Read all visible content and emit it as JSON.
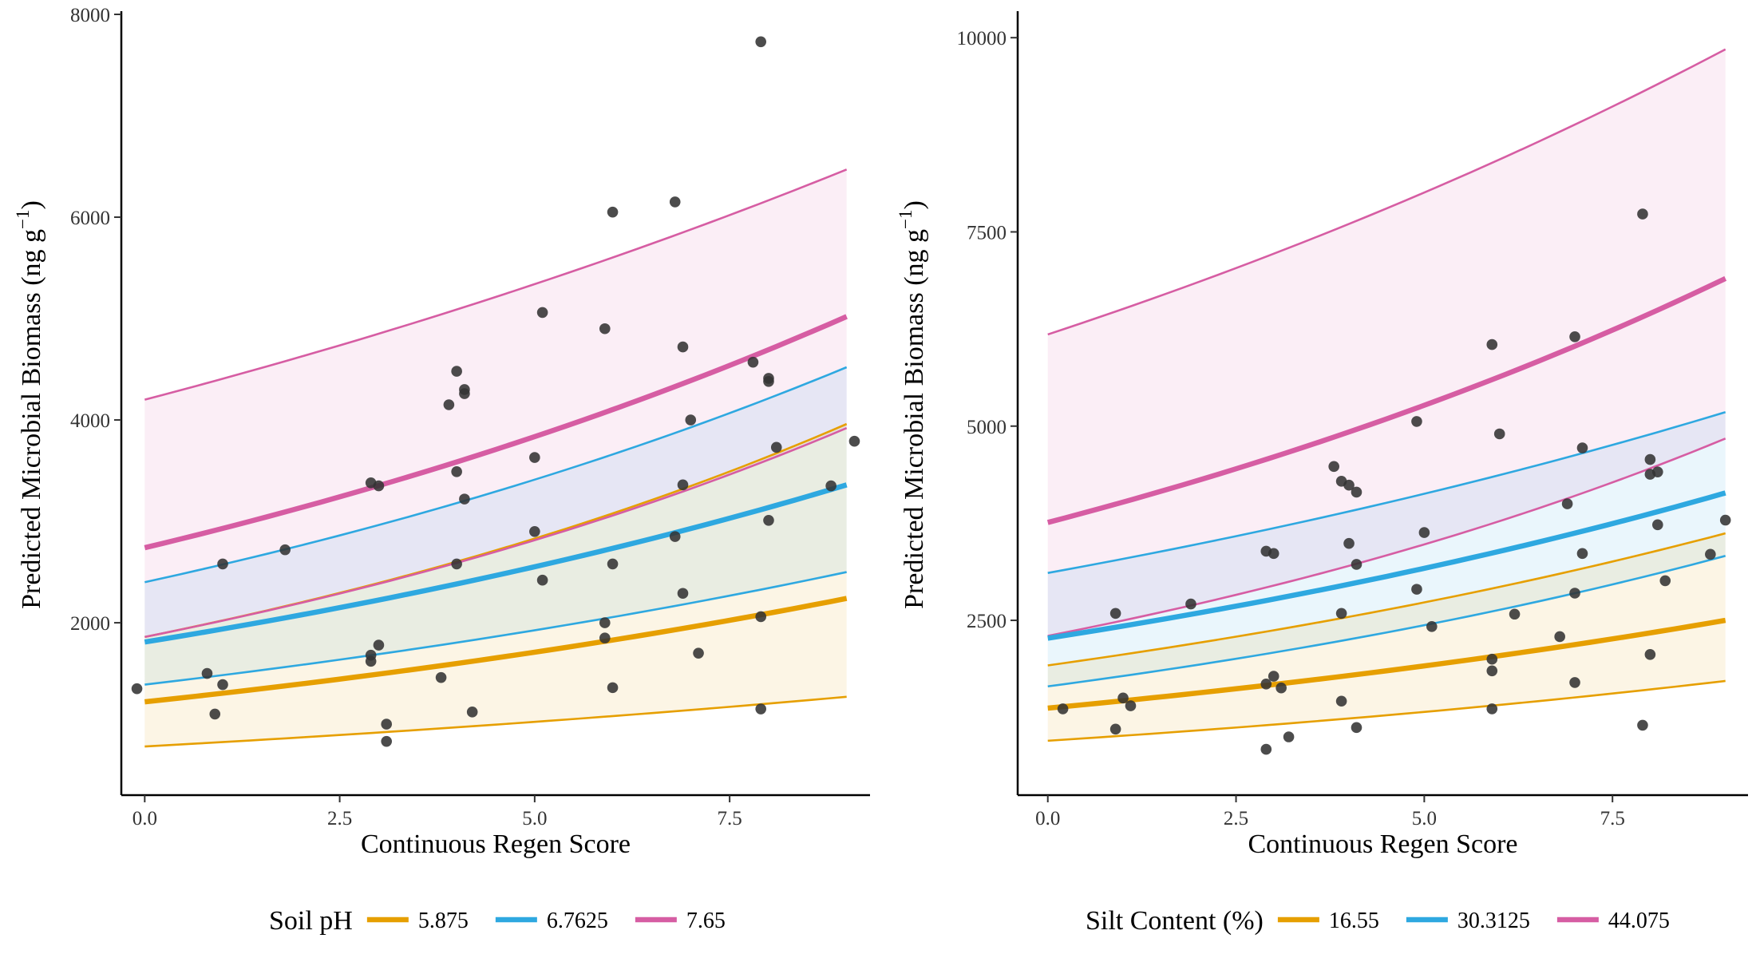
{
  "chart_data": [
    {
      "type": "line",
      "xlabel": "Continuous Regen Score",
      "ylabel_main": "Predicted Microbial Biomass (ng g",
      "ylabel_sup": "−1",
      "ylabel_close": ")",
      "xlim": [
        -0.3,
        9.3
      ],
      "ylim": [
        300,
        8000
      ],
      "xticks": [
        0.0,
        2.5,
        5.0,
        7.5
      ],
      "xtick_labels": [
        "0.0",
        "2.5",
        "5.0",
        "7.5"
      ],
      "yticks": [
        2000,
        4000,
        6000,
        8000
      ],
      "ytick_labels": [
        "2000",
        "4000",
        "6000",
        "8000"
      ],
      "grid": false,
      "legend_position": "bottom",
      "legend_title": "Soil pH",
      "series": [
        {
          "name": "5.875",
          "color": "#E69F00",
          "x": [
            0,
            9
          ],
          "fit": [
            1220,
            2240
          ],
          "lower": [
            780,
            1270
          ],
          "upper": [
            1860,
            3960
          ]
        },
        {
          "name": "6.7625",
          "color": "#2EA8E0",
          "x": [
            0,
            9
          ],
          "fit": [
            1810,
            3360
          ],
          "lower": [
            1390,
            2500
          ],
          "upper": [
            2400,
            4520
          ]
        },
        {
          "name": "7.65",
          "color": "#D65DA3",
          "x": [
            0,
            9
          ],
          "fit": [
            2740,
            5020
          ],
          "lower": [
            1860,
            3920
          ],
          "upper": [
            4200,
            6470
          ]
        }
      ],
      "points": [
        [
          -0.1,
          1350
        ],
        [
          0.8,
          1500
        ],
        [
          0.9,
          1100
        ],
        [
          1.0,
          1390
        ],
        [
          1.0,
          2580
        ],
        [
          1.8,
          2720
        ],
        [
          2.9,
          1680
        ],
        [
          2.9,
          1620
        ],
        [
          2.9,
          3380
        ],
        [
          3.0,
          3350
        ],
        [
          3.0,
          1780
        ],
        [
          3.1,
          830
        ],
        [
          3.1,
          1000
        ],
        [
          3.8,
          1460
        ],
        [
          3.9,
          4150
        ],
        [
          4.0,
          4480
        ],
        [
          4.0,
          3490
        ],
        [
          4.0,
          2580
        ],
        [
          4.1,
          4300
        ],
        [
          4.1,
          4260
        ],
        [
          4.1,
          3220
        ],
        [
          4.2,
          1120
        ],
        [
          5.0,
          3630
        ],
        [
          5.0,
          2900
        ],
        [
          5.1,
          5060
        ],
        [
          5.1,
          2420
        ],
        [
          5.9,
          4900
        ],
        [
          5.9,
          1850
        ],
        [
          5.9,
          2000
        ],
        [
          6.0,
          6050
        ],
        [
          6.0,
          2580
        ],
        [
          6.0,
          1360
        ],
        [
          6.8,
          6150
        ],
        [
          6.8,
          2850
        ],
        [
          6.9,
          3360
        ],
        [
          6.9,
          4720
        ],
        [
          6.9,
          2290
        ],
        [
          7.0,
          4000
        ],
        [
          7.1,
          1700
        ],
        [
          7.8,
          4570
        ],
        [
          7.9,
          7730
        ],
        [
          7.9,
          1150
        ],
        [
          7.9,
          2060
        ],
        [
          8.0,
          4380
        ],
        [
          8.0,
          4410
        ],
        [
          8.0,
          3010
        ],
        [
          8.1,
          3730
        ],
        [
          8.8,
          3350
        ],
        [
          9.1,
          3790
        ]
      ]
    },
    {
      "type": "line",
      "xlabel": "Continuous Regen Score",
      "ylabel_main": "Predicted Microbial Biomass (ng g",
      "ylabel_sup": "−1",
      "ylabel_close": ")",
      "xlim": [
        -0.4,
        9.3
      ],
      "ylim": [
        250,
        10300
      ],
      "xticks": [
        0.0,
        2.5,
        5.0,
        7.5
      ],
      "xtick_labels": [
        "0.0",
        "2.5",
        "5.0",
        "7.5"
      ],
      "yticks": [
        2500,
        5000,
        7500,
        10000
      ],
      "ytick_labels": [
        "2500",
        "5000",
        "7500",
        "10000"
      ],
      "grid": false,
      "legend_position": "bottom",
      "legend_title": "Silt Content (%)",
      "series": [
        {
          "name": "16.55",
          "color": "#E69F00",
          "x": [
            0,
            9
          ],
          "fit": [
            1370,
            2500
          ],
          "lower": [
            950,
            1720
          ],
          "upper": [
            1920,
            3620
          ]
        },
        {
          "name": "30.3125",
          "color": "#2EA8E0",
          "x": [
            0,
            9
          ],
          "fit": [
            2270,
            4140
          ],
          "lower": [
            1650,
            3330
          ],
          "upper": [
            3110,
            5180
          ]
        },
        {
          "name": "44.075",
          "color": "#D65DA3",
          "x": [
            0,
            9
          ],
          "fit": [
            3760,
            6900
          ],
          "lower": [
            2300,
            4840
          ],
          "upper": [
            6180,
            9850
          ]
        }
      ],
      "points": [
        [
          0.2,
          1360
        ],
        [
          0.9,
          2590
        ],
        [
          0.9,
          1100
        ],
        [
          1.0,
          1500
        ],
        [
          1.1,
          1400
        ],
        [
          1.9,
          2710
        ],
        [
          2.9,
          840
        ],
        [
          2.9,
          1680
        ],
        [
          2.9,
          3390
        ],
        [
          3.0,
          1780
        ],
        [
          3.0,
          3360
        ],
        [
          3.1,
          1630
        ],
        [
          3.2,
          1000
        ],
        [
          3.8,
          4480
        ],
        [
          3.9,
          4290
        ],
        [
          3.9,
          2590
        ],
        [
          3.9,
          1460
        ],
        [
          4.0,
          4240
        ],
        [
          4.0,
          3490
        ],
        [
          4.1,
          4150
        ],
        [
          4.1,
          3220
        ],
        [
          4.1,
          1120
        ],
        [
          4.9,
          5060
        ],
        [
          4.9,
          2900
        ],
        [
          5.0,
          3630
        ],
        [
          5.1,
          2420
        ],
        [
          5.9,
          6050
        ],
        [
          5.9,
          1850
        ],
        [
          5.9,
          2000
        ],
        [
          5.9,
          1360
        ],
        [
          6.0,
          4900
        ],
        [
          6.2,
          2580
        ],
        [
          6.8,
          2290
        ],
        [
          6.9,
          4000
        ],
        [
          7.0,
          6150
        ],
        [
          7.0,
          2850
        ],
        [
          7.0,
          1700
        ],
        [
          7.1,
          3360
        ],
        [
          7.1,
          4720
        ],
        [
          7.9,
          7730
        ],
        [
          7.9,
          1150
        ],
        [
          8.0,
          2060
        ],
        [
          8.0,
          4570
        ],
        [
          8.0,
          4380
        ],
        [
          8.1,
          4410
        ],
        [
          8.1,
          3730
        ],
        [
          8.2,
          3010
        ],
        [
          8.8,
          3350
        ],
        [
          9.0,
          3790
        ]
      ]
    }
  ]
}
